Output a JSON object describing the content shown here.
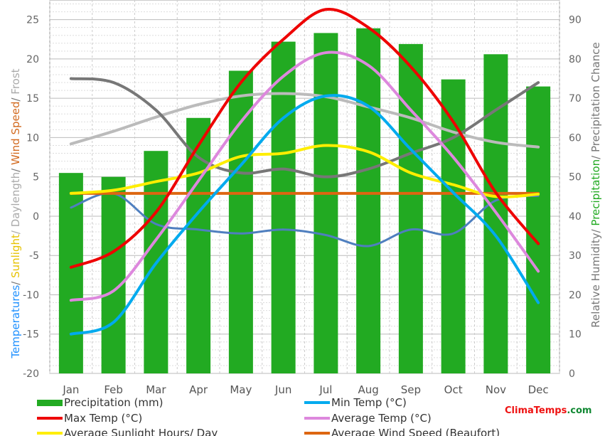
{
  "chart_data": {
    "type": "bar+line",
    "categories": [
      "Jan",
      "Feb",
      "Mar",
      "Apr",
      "May",
      "Jun",
      "Jul",
      "Aug",
      "Sep",
      "Oct",
      "Nov",
      "Dec"
    ],
    "left_axis": {
      "range": [
        -20,
        27.5
      ],
      "ticks": [
        25,
        20,
        15,
        10,
        5,
        0,
        -5,
        -10,
        -15,
        -20
      ],
      "label_parts": [
        {
          "text": "Temperatures",
          "color": "#1e90ff"
        },
        {
          "text": "/ ",
          "color": "#777777"
        },
        {
          "text": "Sunlight",
          "color": "#e6c200"
        },
        {
          "text": "/ Daylength",
          "color": "#aaaaaa"
        },
        {
          "text": "/ ",
          "color": "#777777"
        },
        {
          "text": "Wind Speed",
          "color": "#d2691e"
        },
        {
          "text": "/ ",
          "color": "#777777"
        },
        {
          "text": "Frost",
          "color": "#aaaaaa"
        }
      ]
    },
    "right_axis": {
      "range": [
        0,
        95
      ],
      "ticks": [
        90,
        80,
        70,
        60,
        50,
        40,
        30,
        20,
        10,
        0
      ],
      "label_parts": [
        {
          "text": "Relative Humidity/ ",
          "color": "#777777"
        },
        {
          "text": "Precipitation",
          "color": "#22aa22"
        },
        {
          "text": "/ Precipitation Chance",
          "color": "#777777"
        }
      ]
    },
    "bars": {
      "name": "Precipitation (mm)",
      "color": "#22aa22",
      "values": [
        5.5,
        5.0,
        8.3,
        12.5,
        18.5,
        22.2,
        23.3,
        23.9,
        21.9,
        17.4,
        20.6,
        16.5
      ]
    },
    "series": [
      {
        "name": "Max Temp (°C)",
        "color": "#ee0000",
        "values": [
          -6.5,
          -4.5,
          0.5,
          9.0,
          17.0,
          22.5,
          26.3,
          24.0,
          19.0,
          12.0,
          3.0,
          -3.5
        ]
      },
      {
        "name": "Min Temp (°C)",
        "color": "#00aaee",
        "values": [
          -15.0,
          -13.5,
          -6.0,
          0.5,
          6.5,
          12.5,
          15.3,
          14.0,
          8.5,
          3.0,
          -2.5,
          -11.0
        ]
      },
      {
        "name": "Average Temp (°C)",
        "color": "#dd88dd",
        "values": [
          -10.7,
          -9.5,
          -3.0,
          4.5,
          12.0,
          17.8,
          20.8,
          19.2,
          13.5,
          7.5,
          0.5,
          -7.0
        ]
      },
      {
        "name": "Average Sunlight Hours/ Day",
        "color": "#ffee00",
        "values": [
          2.9,
          3.3,
          4.4,
          5.5,
          7.6,
          8.0,
          9.0,
          8.2,
          5.5,
          4.0,
          2.5,
          2.8
        ]
      },
      {
        "name": "Average Wind Speed (Beaufort)",
        "color": "#dd6611",
        "values": [
          2.9,
          2.9,
          2.9,
          2.9,
          2.9,
          2.9,
          2.9,
          2.9,
          2.9,
          2.9,
          2.9,
          2.9
        ]
      },
      {
        "name": "Relative Humidity (%)",
        "color": "#777777",
        "axis": "right",
        "values": [
          75,
          74,
          67,
          55,
          51,
          52,
          50,
          52,
          56,
          60,
          67,
          74
        ]
      },
      {
        "name": "Daylength (hours)",
        "color": "#bbbbbb",
        "values": [
          9.2,
          10.8,
          12.6,
          14.2,
          15.3,
          15.6,
          15.2,
          13.9,
          12.5,
          10.7,
          9.4,
          8.8
        ]
      },
      {
        "name": "Frost",
        "color": "#777777",
        "values": [
          1.1,
          2.9,
          -1.0,
          -1.7,
          -2.2,
          -1.7,
          -2.4,
          -3.8,
          -1.7,
          -2.2,
          2.0,
          2.6
        ]
      }
    ],
    "legend": [
      "Precipitation (mm)",
      "Min Temp (°C)",
      "Max Temp (°C)",
      "Average Temp (°C)",
      "Average Sunlight Hours/ Day",
      "Average Wind Speed (Beaufort)"
    ],
    "grid": true,
    "legend_position": "bottom"
  },
  "brand": {
    "clima": "Clima",
    "temps": "Temps",
    "com": ".com",
    "red": "#ee1111",
    "green": "#118833"
  }
}
